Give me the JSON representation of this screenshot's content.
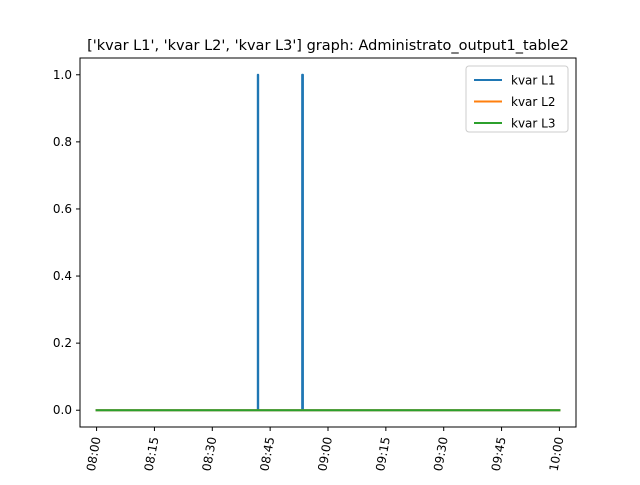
{
  "chart_data": {
    "type": "line",
    "title": "['kvar L1', 'kvar L2', 'kvar L3'] graph: Administrato_output1_table2",
    "xlabel": "",
    "ylabel": "",
    "x_ticks": [
      "08:00",
      "08:15",
      "08:30",
      "08:45",
      "09:00",
      "09:15",
      "09:30",
      "09:45",
      "10:00"
    ],
    "x_ticks_minutes": [
      480,
      495,
      510,
      525,
      540,
      555,
      570,
      585,
      600
    ],
    "xlim": [
      "07:56",
      "10:04"
    ],
    "xlim_minutes": [
      475.7,
      604.3
    ],
    "y_ticks": [
      "0.0",
      "0.2",
      "0.4",
      "0.6",
      "0.8",
      "1.0"
    ],
    "y_ticks_values": [
      0,
      0.2,
      0.4,
      0.6,
      0.8,
      1.0
    ],
    "ylim": [
      -0.05,
      1.05
    ],
    "grid": false,
    "legend_position": "top-right",
    "series": [
      {
        "name": "kvar L1",
        "color": "#1f77b4",
        "x_minutes": [
          480,
          521.8,
          521.8,
          521.9,
          521.9,
          533.3,
          533.3,
          533.5,
          533.5,
          600
        ],
        "values": [
          0,
          0,
          1,
          1,
          0,
          0,
          1,
          1,
          0,
          0
        ]
      },
      {
        "name": "kvar L2",
        "color": "#ff7f0e",
        "x_minutes": [
          480,
          600
        ],
        "values": [
          0,
          0
        ]
      },
      {
        "name": "kvar L3",
        "color": "#2ca02c",
        "x_minutes": [
          480,
          600
        ],
        "values": [
          0,
          0
        ]
      }
    ]
  }
}
